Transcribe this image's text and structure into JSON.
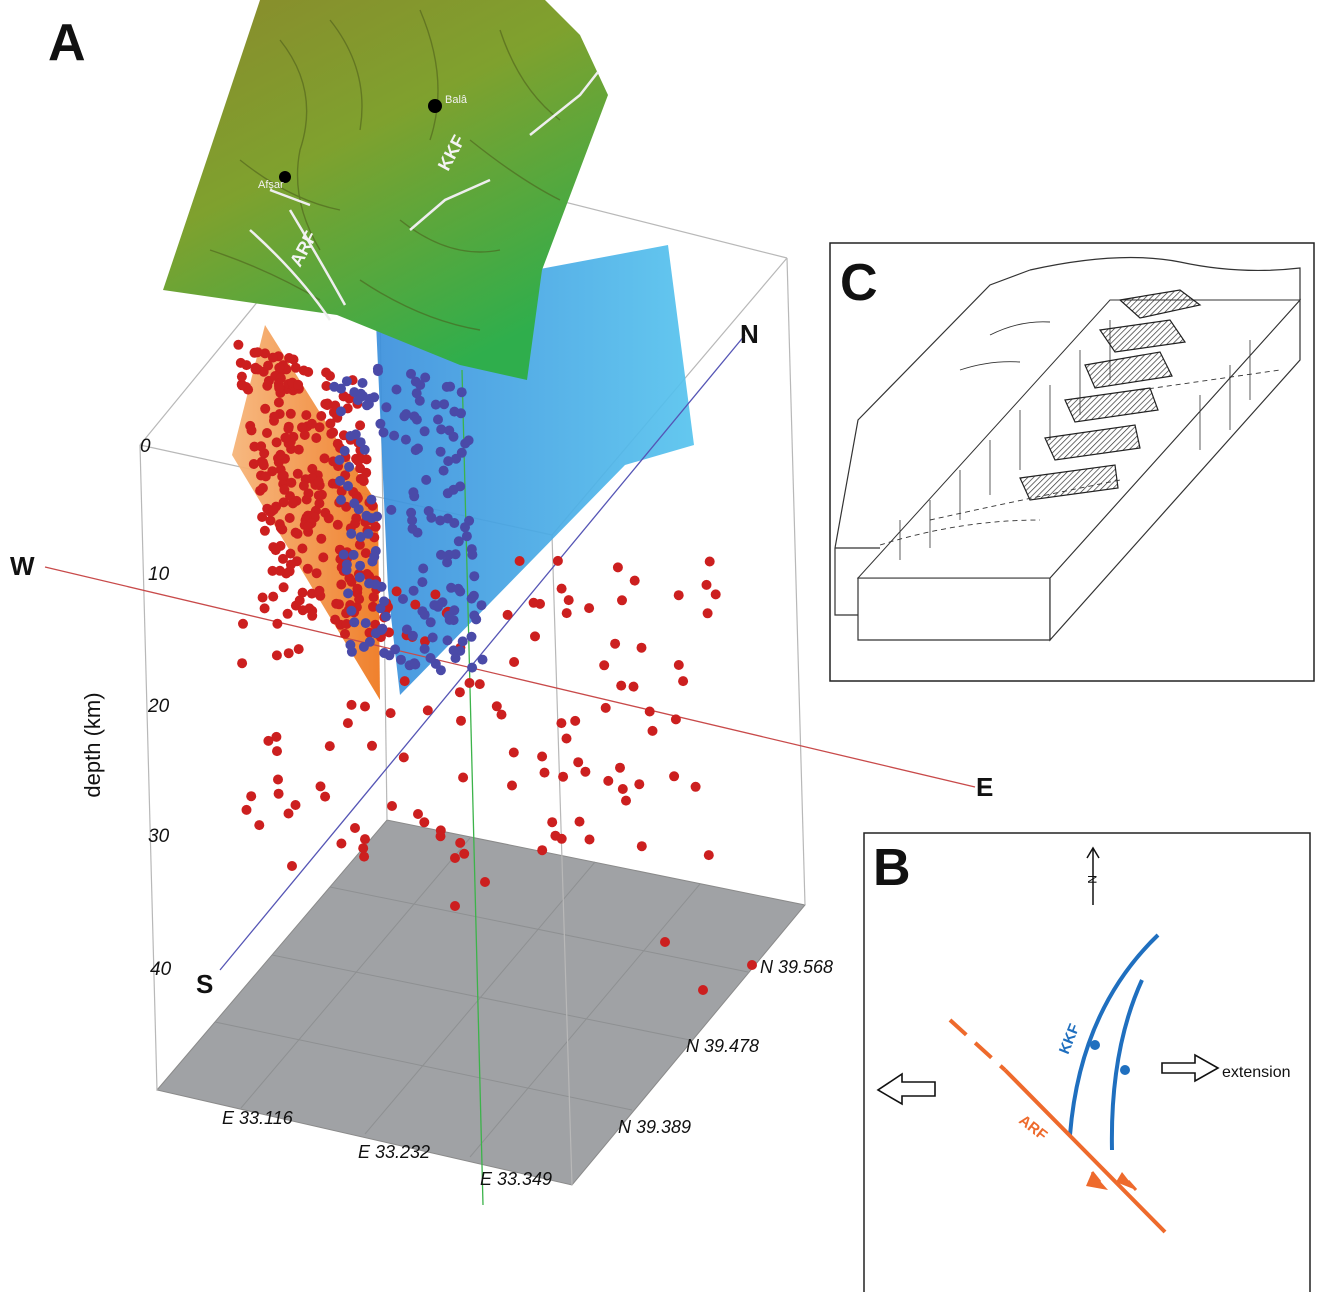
{
  "panels": {
    "a": {
      "letter": "A",
      "y_axis_label": "depth (km)",
      "depth_ticks": [
        "0",
        "10",
        "20",
        "30",
        "40"
      ],
      "directions": {
        "west": "W",
        "east": "E",
        "north": "N",
        "south": "S"
      },
      "easting_labels": [
        "E 33.116",
        "E 33.232",
        "E 33.349"
      ],
      "northing_labels": [
        "N 39.568",
        "N 39.478",
        "N 39.389"
      ],
      "map_labels": {
        "town_1": "Balâ",
        "town_2": "Afşar",
        "fault_1": "KKF",
        "fault_2": "ARF"
      },
      "colors": {
        "terrain_high": "#7a8a2a",
        "terrain_low": "#2fa84a",
        "blue_plane": "#3fa0e0",
        "orange_plane": "#f08a30",
        "red_events": "#cc1f1f",
        "blue_events": "#4a4aa8",
        "base_plane": "#a0a2a5",
        "ew_line": "#c84a4a",
        "ns_line": "#5555b5",
        "vertical_line": "#3cb34a"
      }
    },
    "b": {
      "letter": "B",
      "north_symbol": "N",
      "fault_labels": {
        "kkf": "KKF",
        "arf": "ARF"
      },
      "extension_label": "extension",
      "colors": {
        "kkf": "#1f6fbf",
        "arf": "#ee6a2c"
      }
    },
    "c": {
      "letter": "C"
    }
  }
}
